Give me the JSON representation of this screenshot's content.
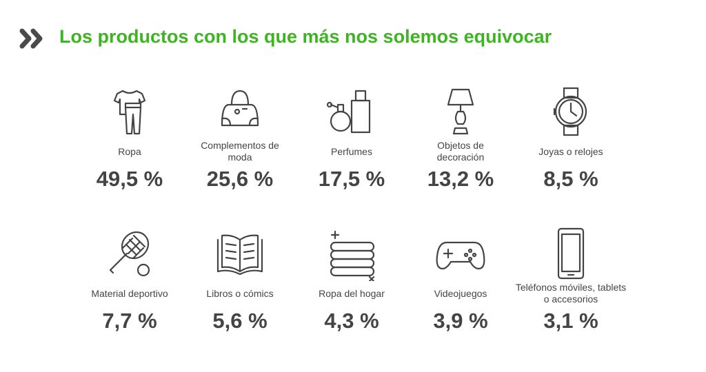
{
  "title": "Los productos con los que más nos solemos equivocar",
  "colors": {
    "accent": "#3cb521",
    "text": "#444444"
  },
  "items": [
    {
      "label": "Ropa",
      "value": "49,5 %",
      "icon": "clothes-icon"
    },
    {
      "label": "Complementos de moda",
      "value": "25,6 %",
      "icon": "handbag-icon"
    },
    {
      "label": "Perfumes",
      "value": "17,5 %",
      "icon": "perfume-icon"
    },
    {
      "label": "Objetos de decoración",
      "value": "13,2 %",
      "icon": "lamp-icon"
    },
    {
      "label": "Joyas o relojes",
      "value": "8,5 %",
      "icon": "watch-icon"
    },
    {
      "label": "Material deportivo",
      "value": "7,7 %",
      "icon": "tennis-racket-icon"
    },
    {
      "label": "Libros o cómics",
      "value": "5,6 %",
      "icon": "book-icon"
    },
    {
      "label": "Ropa del hogar",
      "value": "4,3 %",
      "icon": "towels-icon"
    },
    {
      "label": "Videojuegos",
      "value": "3,9 %",
      "icon": "gamepad-icon"
    },
    {
      "label": "Teléfonos móviles, tablets o accesorios",
      "value": "3,1 %",
      "icon": "smartphone-icon"
    }
  ]
}
